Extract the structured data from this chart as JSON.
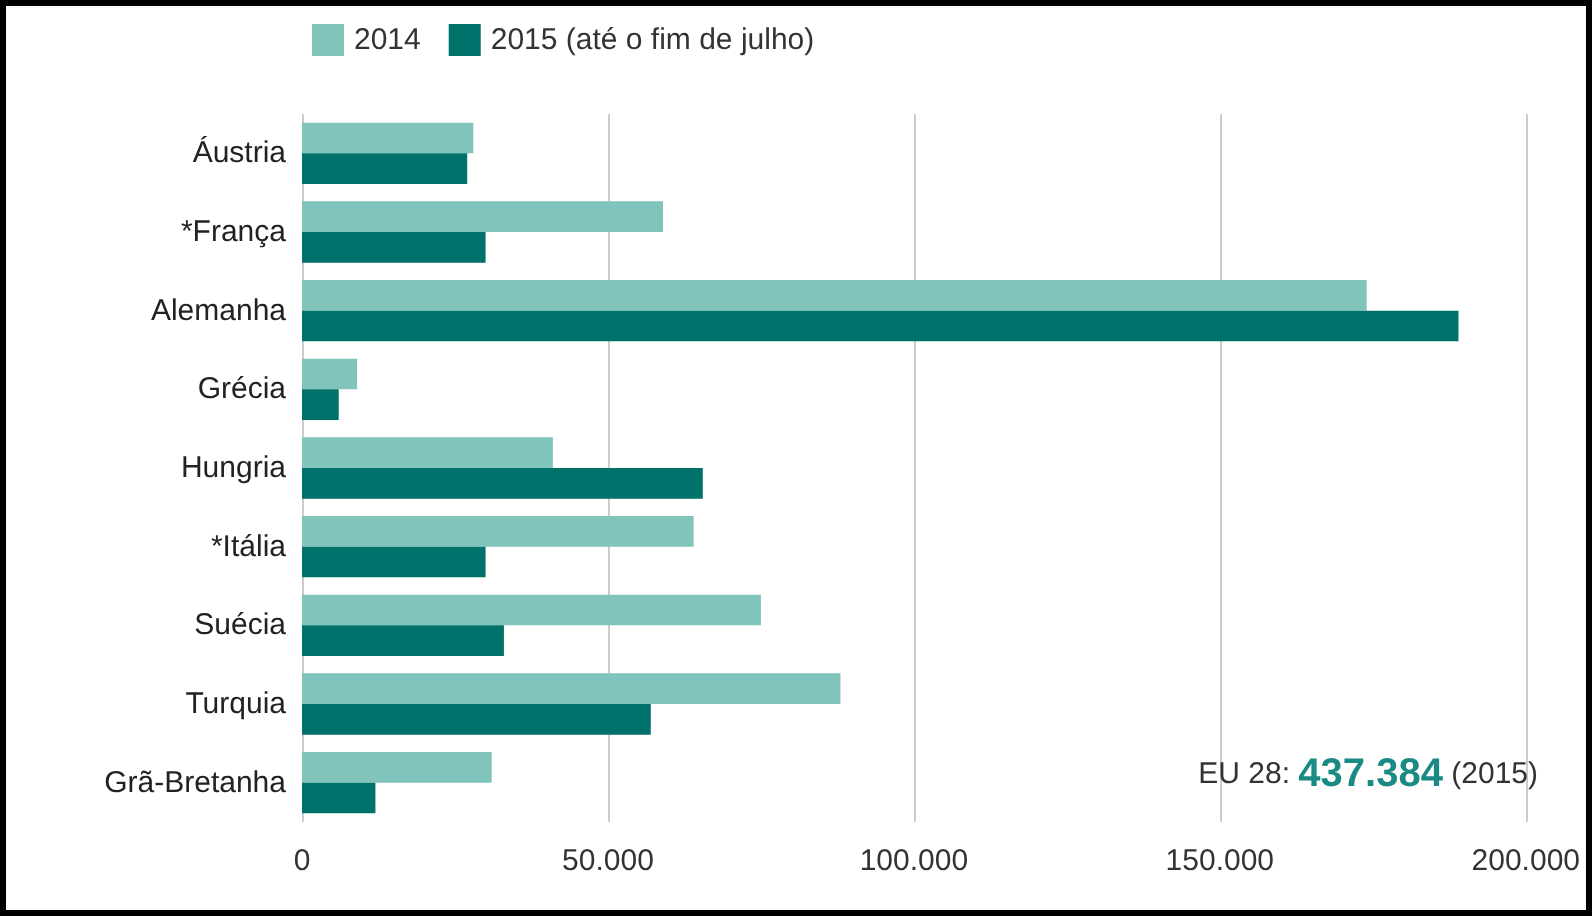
{
  "chart_data": {
    "type": "bar",
    "orientation": "horizontal",
    "categories": [
      "Áustria",
      "*França",
      "Alemanha",
      "Grécia",
      "Hungria",
      "*Itália",
      "Suécia",
      "Turquia",
      "Grã-Bretanha"
    ],
    "series": [
      {
        "name": "2014",
        "color": "#80c4bc",
        "values": [
          28000,
          59000,
          174000,
          9000,
          41000,
          64000,
          75000,
          88000,
          31000
        ]
      },
      {
        "name": "2015 (até o fim de julho)",
        "color": "#00716b",
        "values": [
          27000,
          30000,
          189000,
          6000,
          65500,
          30000,
          33000,
          57000,
          12000
        ]
      }
    ],
    "xlim": [
      0,
      200000
    ],
    "xticks": [
      0,
      {
        "value": 50000,
        "label": "50.000"
      },
      {
        "value": 100000,
        "label": "100.000"
      },
      {
        "value": 150000,
        "label": "150.000"
      },
      {
        "value": 200000,
        "label": "200.000"
      }
    ],
    "grid": "x",
    "legend": "top left",
    "annotations": [
      "EU 28: 437.384 (2015)"
    ]
  }
}
